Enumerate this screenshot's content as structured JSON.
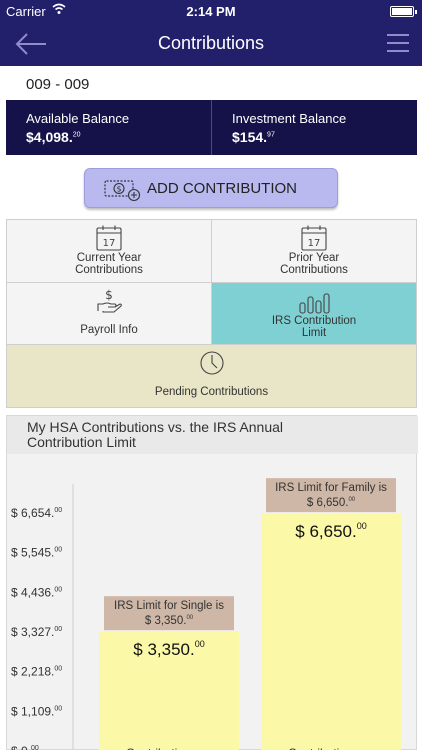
{
  "status": {
    "carrier": "Carrier",
    "time": "2:14 PM",
    "wifi_icon": "wifi-icon",
    "battery_icon": "battery-icon"
  },
  "nav": {
    "title": "Contributions",
    "back_icon": "arrow-left-icon",
    "menu_icon": "hamburger-menu-icon"
  },
  "account": {
    "id": "009 - 009"
  },
  "balances": {
    "available": {
      "label": "Available Balance",
      "amount": "$4,098.",
      "cents": "20"
    },
    "investment": {
      "label": "Investment Balance",
      "amount": "$154.",
      "cents": "97"
    }
  },
  "add_contribution": {
    "label": "ADD CONTRIBUTION",
    "icon": "money-plus-icon"
  },
  "tiles": {
    "current_year": {
      "line1": "Current Year",
      "line2": "Contributions",
      "icon": "calendar-icon",
      "day": "17"
    },
    "prior_year": {
      "line1": "Prior Year",
      "line2": "Contributions",
      "icon": "calendar-icon",
      "day": "17"
    },
    "payroll": {
      "line1": "Payroll Info",
      "icon": "hand-money-icon"
    },
    "irs_limit": {
      "line1": "IRS Contribution",
      "line2": "Limit",
      "icon": "bar-chart-icon"
    },
    "pending": {
      "line1": "Pending Contributions",
      "icon": "clock-icon"
    }
  },
  "colors": {
    "navy": "#23206b",
    "balance_bar": "#15124a",
    "active_tile": "#7fd0d3",
    "pending_tile": "#e8e6c6",
    "bar_fill": "#fbf8a8",
    "label_box": "#cfb7a7"
  },
  "chart_data": {
    "type": "bar",
    "title_line1": "My HSA Contributions vs. the IRS Annual",
    "title_line2": "Contribution Limit",
    "yticks": [
      {
        "value": 0,
        "main": "$ 0.",
        "cents": "00"
      },
      {
        "value": 1109,
        "main": "$ 1,109.",
        "cents": "00"
      },
      {
        "value": 2218,
        "main": "$ 2,218.",
        "cents": "00"
      },
      {
        "value": 3327,
        "main": "$ 3,327.",
        "cents": "00"
      },
      {
        "value": 4436,
        "main": "$ 4,436.",
        "cents": "00"
      },
      {
        "value": 5545,
        "main": "$ 5,545.",
        "cents": "00"
      },
      {
        "value": 6654,
        "main": "$ 6,654.",
        "cents": "00"
      }
    ],
    "ylim": [
      0,
      6654
    ],
    "bars": [
      {
        "value": 3350,
        "value_main": "$ 3,350.",
        "value_cents": "00",
        "limit_line1": "IRS Limit for Single is",
        "limit_line2_main": "$ 3,350.",
        "limit_line2_cents": "00",
        "category": "Contributions vs"
      },
      {
        "value": 6650,
        "value_main": "$ 6,650.",
        "value_cents": "00",
        "limit_line1": "IRS Limit for Family is",
        "limit_line2_main": "$ 6,650.",
        "limit_line2_cents": "00",
        "category": "Contributions vs"
      }
    ],
    "grid": false,
    "legend": "none"
  }
}
